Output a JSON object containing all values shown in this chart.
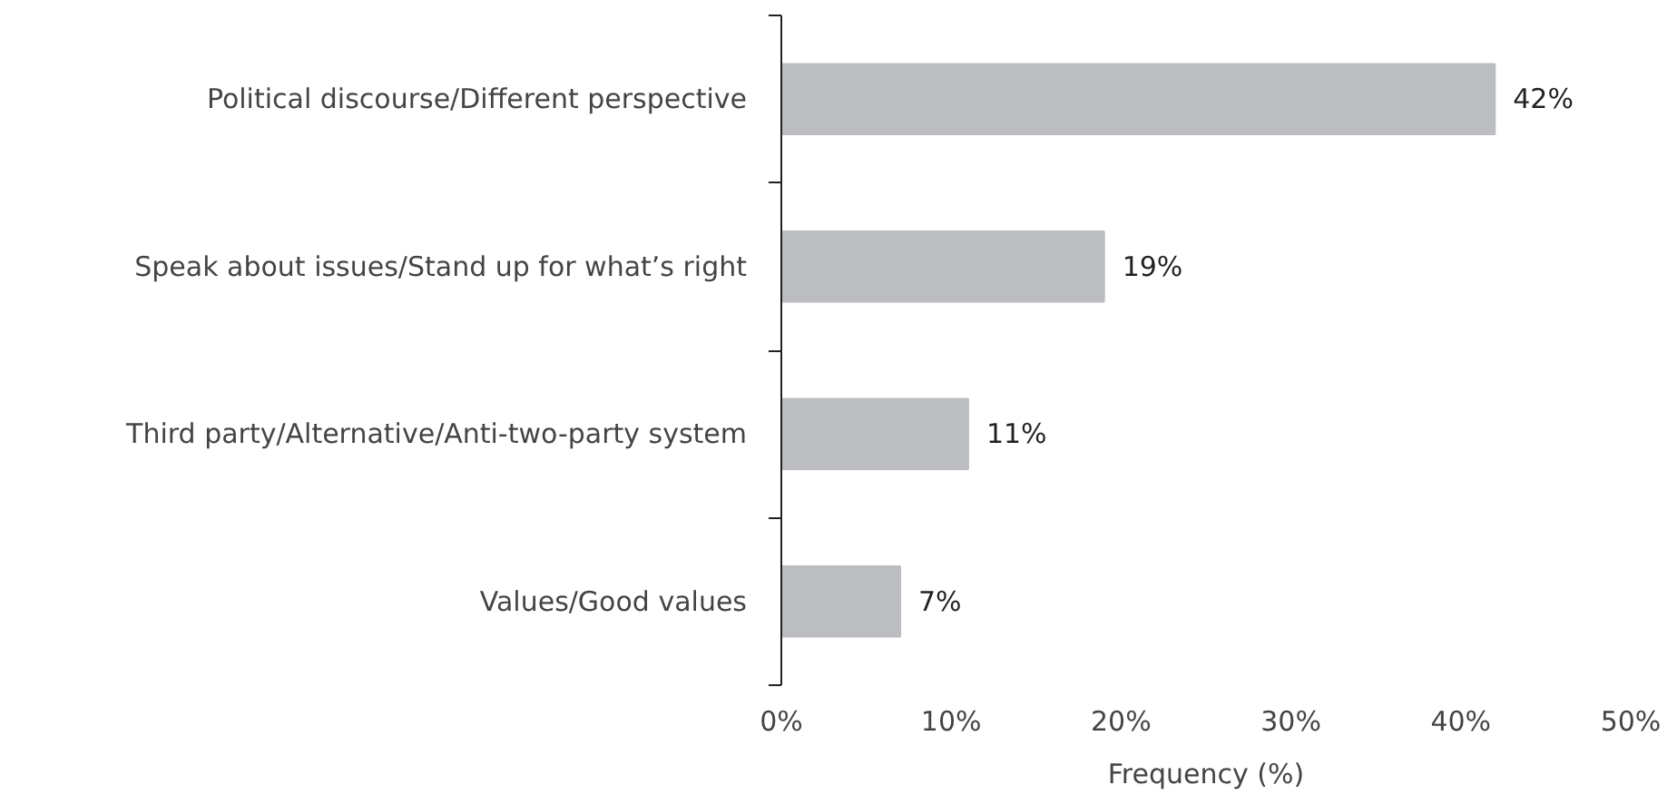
{
  "chart_data": {
    "type": "bar",
    "orientation": "horizontal",
    "xlabel": "Frequency (%)",
    "categories": [
      "Political discourse/Different perspective",
      "Speak about issues/Stand up for what’s right",
      "Third party/Alternative/Anti-two-party system",
      "Values/Good values"
    ],
    "values": [
      42,
      19,
      11,
      7
    ],
    "value_labels": [
      "42%",
      "19%",
      "11%",
      "7%"
    ],
    "color": "#bcbdc0",
    "xlim": [
      0,
      50
    ],
    "xticks": [
      {
        "value": 0,
        "label": "0%"
      },
      {
        "value": 10,
        "label": "10%"
      },
      {
        "value": 20,
        "label": "20%"
      },
      {
        "value": 30,
        "label": "30%"
      },
      {
        "value": 40,
        "label": "40%"
      },
      {
        "value": 50,
        "label": "50%"
      }
    ],
    "grid": false
  }
}
